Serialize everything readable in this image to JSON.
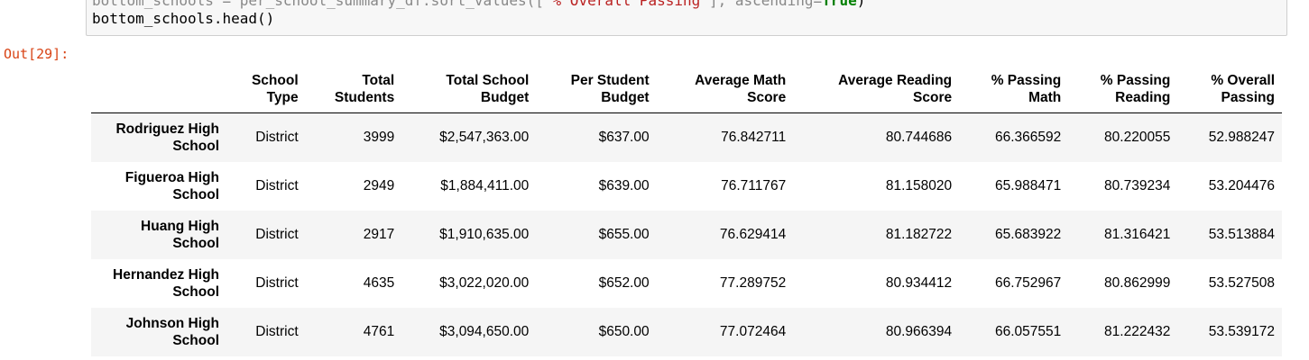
{
  "code": {
    "line1_faded": "bottom_schools = per_school_summary_df.sort_values([",
    "line1_string": "\"% Overall Passing\"",
    "line1_mid": "], ascending=",
    "line1_keyword": "True",
    "line1_end": ")",
    "line2": "bottom_schools.head()"
  },
  "output": {
    "prompt": "Out[29]:"
  },
  "table": {
    "columns": [
      "",
      "School\nType",
      "Total\nStudents",
      "Total School\nBudget",
      "Per Student\nBudget",
      "Average Math\nScore",
      "Average Reading\nScore",
      "% Passing\nMath",
      "% Passing\nReading",
      "% Overall\nPassing"
    ],
    "rows": [
      {
        "name": "Rodriguez High\nSchool",
        "cells": [
          "District",
          "3999",
          "$2,547,363.00",
          "$637.00",
          "76.842711",
          "80.744686",
          "66.366592",
          "80.220055",
          "52.988247"
        ]
      },
      {
        "name": "Figueroa High\nSchool",
        "cells": [
          "District",
          "2949",
          "$1,884,411.00",
          "$639.00",
          "76.711767",
          "81.158020",
          "65.988471",
          "80.739234",
          "53.204476"
        ]
      },
      {
        "name": "Huang High\nSchool",
        "cells": [
          "District",
          "2917",
          "$1,910,635.00",
          "$655.00",
          "76.629414",
          "81.182722",
          "65.683922",
          "81.316421",
          "53.513884"
        ]
      },
      {
        "name": "Hernandez High\nSchool",
        "cells": [
          "District",
          "4635",
          "$3,022,020.00",
          "$652.00",
          "77.289752",
          "80.934412",
          "66.752967",
          "80.862999",
          "53.527508"
        ]
      },
      {
        "name": "Johnson High\nSchool",
        "cells": [
          "District",
          "4761",
          "$3,094,650.00",
          "$650.00",
          "77.072464",
          "80.966394",
          "66.057551",
          "81.222432",
          "53.539172"
        ]
      }
    ]
  }
}
